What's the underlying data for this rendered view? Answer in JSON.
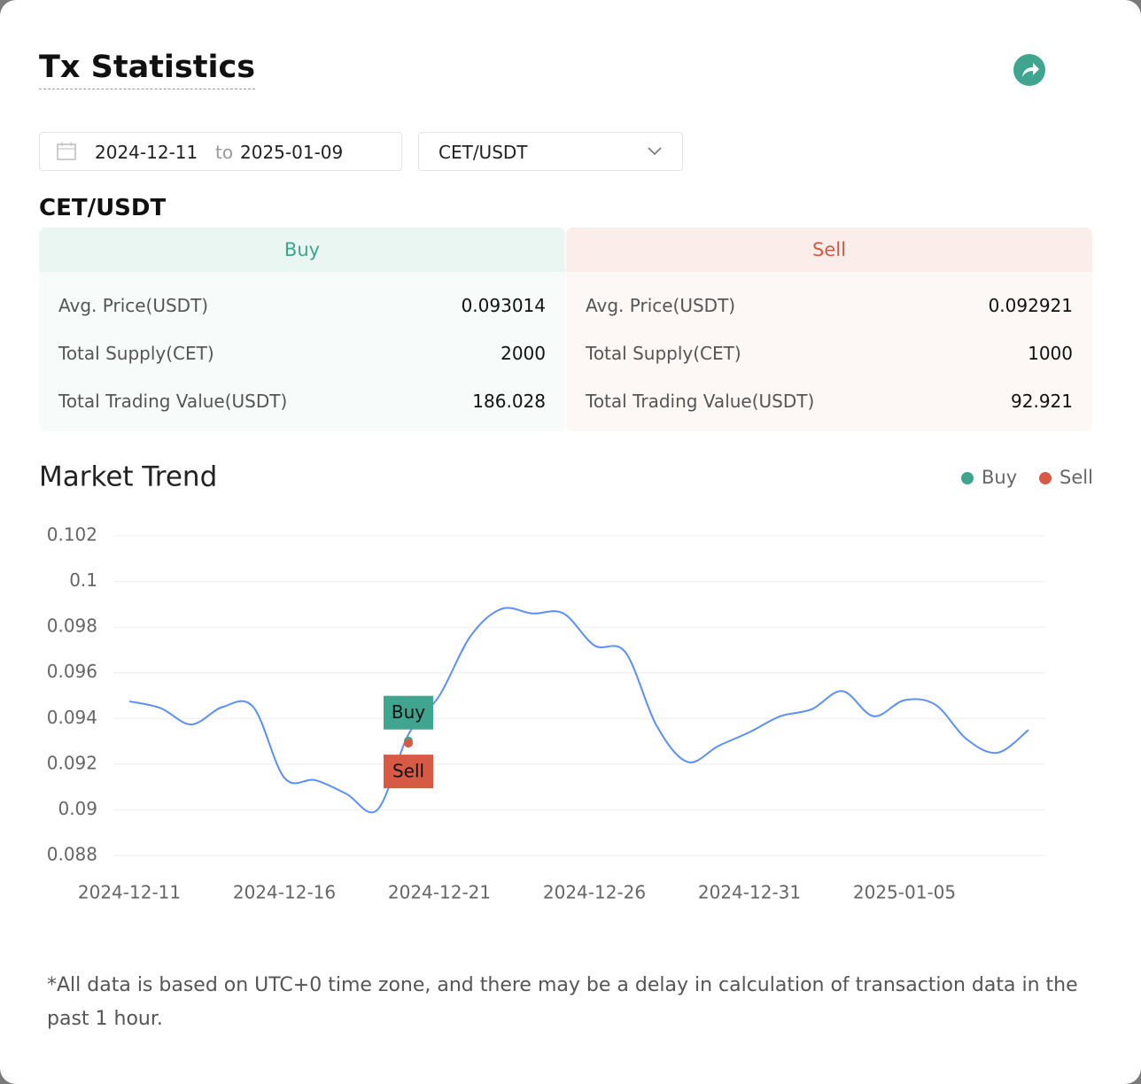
{
  "header": {
    "title": "Tx Statistics"
  },
  "filters": {
    "start_date": "2024-12-11",
    "separator": "to",
    "end_date": "2025-01-09",
    "pair": "CET/USDT"
  },
  "pair_title": "CET/USDT",
  "buy": {
    "heading": "Buy",
    "rows": [
      {
        "label": "Avg. Price(USDT)",
        "value": "0.093014"
      },
      {
        "label": "Total Supply(CET)",
        "value": "2000"
      },
      {
        "label": "Total Trading Value(USDT)",
        "value": "186.028"
      }
    ]
  },
  "sell": {
    "heading": "Sell",
    "rows": [
      {
        "label": "Avg. Price(USDT)",
        "value": "0.092921"
      },
      {
        "label": "Total Supply(CET)",
        "value": "1000"
      },
      {
        "label": "Total Trading Value(USDT)",
        "value": "92.921"
      }
    ]
  },
  "chart_data": {
    "type": "line",
    "title": "Market Trend",
    "x": [
      "2024-12-11",
      "2024-12-12",
      "2024-12-13",
      "2024-12-14",
      "2024-12-15",
      "2024-12-16",
      "2024-12-17",
      "2024-12-18",
      "2024-12-19",
      "2024-12-20",
      "2024-12-21",
      "2024-12-22",
      "2024-12-23",
      "2024-12-24",
      "2024-12-25",
      "2024-12-26",
      "2024-12-27",
      "2024-12-28",
      "2024-12-29",
      "2024-12-30",
      "2024-12-31",
      "2025-01-01",
      "2025-01-02",
      "2025-01-03",
      "2025-01-04",
      "2025-01-05",
      "2025-01-06",
      "2025-01-07",
      "2025-01-08",
      "2025-01-09"
    ],
    "series": [
      {
        "color": "#5b8ff9",
        "values": [
          0.09475,
          0.09446,
          0.09374,
          0.0945,
          0.0945,
          0.0914,
          0.0913,
          0.0907,
          0.09,
          0.0933,
          0.095,
          0.0976,
          0.0988,
          0.0986,
          0.0986,
          0.0972,
          0.0969,
          0.0937,
          0.0921,
          0.0928,
          0.0934,
          0.0941,
          0.0944,
          0.0952,
          0.0941,
          0.0948,
          0.0946,
          0.0931,
          0.0925,
          0.0935
        ]
      }
    ],
    "markers": [
      {
        "name": "Buy",
        "color": "#3fa58e",
        "x": "2024-12-20",
        "value": 0.093014
      },
      {
        "name": "Sell",
        "color": "#d65a44",
        "x": "2024-12-20",
        "value": 0.092921
      }
    ],
    "xticks": [
      "2024-12-11",
      "2024-12-16",
      "2024-12-21",
      "2024-12-26",
      "2024-12-31",
      "2025-01-05"
    ],
    "ylim": [
      0.088,
      0.102
    ],
    "yticks": [
      0.088,
      0.09,
      0.092,
      0.094,
      0.096,
      0.098,
      0.1,
      0.102
    ],
    "grid": true
  },
  "footnote": "*All data is based on UTC+0 time zone, and there may be a delay in calculation of transaction data in the past 1 hour."
}
